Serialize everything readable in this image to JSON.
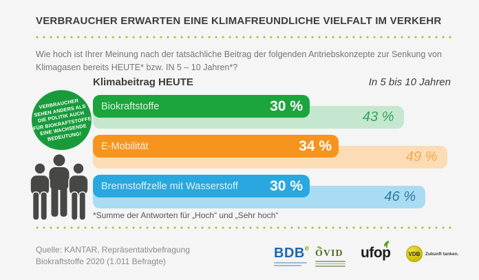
{
  "meta": {
    "background": "#f4f5f4",
    "accent_dot_green": "#a8c83e",
    "silhouette_gray": "#474746"
  },
  "header": {
    "title": "VERBRAUCHER ERWARTEN EINE KLIMAFREUNDLICHE VIELFALT IM VERKEHR",
    "question": "Wie hoch ist Ihrer Meinung nach der tatsächliche Beitrag der folgenden Antriebskonzepte zur Senkung von Klimagasen bereits HEUTE* bzw. IN 5 – 10 Jahren*?"
  },
  "badge": {
    "color": "#199b3c",
    "lines": [
      "VERBRAUCHER",
      "SEHEN ANDERS ALS",
      "DIE POLITIK AUCH",
      "FÜR BIOKRAFTSTOFFE",
      "EINE WACHSENDE",
      "BEDEUTUNG!"
    ]
  },
  "chart": {
    "col_today": "Klimabeitrag HEUTE",
    "col_future": "In 5 bis 10 Jahren",
    "rows": [
      {
        "label": "Biokraftstoffe",
        "today_value": 30,
        "today_label": "30 %",
        "future_value": 43,
        "future_label": "43 %",
        "color": "#1ba53c",
        "light_color": "#c5e7cf",
        "future_text_color": "#33a35c"
      },
      {
        "label": "E-Mobilität",
        "today_value": 34,
        "today_label": "34 %",
        "future_value": 49,
        "future_label": "49 %",
        "color": "#f7941d",
        "light_color": "#fbdcb4",
        "future_text_color": "#f5a94a"
      },
      {
        "label": "Brennstoffzelle mit Wasserstoff",
        "today_value": 30,
        "today_label": "30 %",
        "future_value": 46,
        "future_label": "46 %",
        "color": "#29a8df",
        "light_color": "#a9dcf2",
        "future_text_color": "#2c7ca3"
      }
    ],
    "footnote": "*Summe der Antworten für „Hoch“ und „Sehr hoch“"
  },
  "footer": {
    "source_line1": "Quelle: KANTAR, Repräsentativbefragung",
    "source_line2": "Biokraftstoffe 2020 (1.011 Befragte)",
    "logos": {
      "bdb": {
        "text": "BDB",
        "sup": "e"
      },
      "ovid": {
        "text": "OVID"
      },
      "ufop": {
        "text": "ufop"
      },
      "vdb": {
        "text": "VDB",
        "tagline": "Zukunft tanken."
      }
    }
  },
  "chart_data": {
    "type": "bar",
    "orientation": "horizontal",
    "title": "VERBRAUCHER ERWARTEN EINE KLIMAFREUNDLICHE VIELFALT IM VERKEHR",
    "subtitle": "Wie hoch ist Ihrer Meinung nach der tatsächliche Beitrag der folgenden Antriebskonzepte zur Senkung von Klimagasen bereits HEUTE* bzw. IN 5 – 10 Jahren*?",
    "categories": [
      "Biokraftstoffe",
      "E-Mobilität",
      "Brennstoffzelle mit Wasserstoff"
    ],
    "series": [
      {
        "name": "Klimabeitrag HEUTE",
        "values": [
          30,
          34,
          30
        ],
        "colors": [
          "#1ba53c",
          "#f7941d",
          "#29a8df"
        ]
      },
      {
        "name": "In 5 bis 10 Jahren",
        "values": [
          43,
          49,
          46
        ],
        "colors": [
          "#c5e7cf",
          "#fbdcb4",
          "#a9dcf2"
        ]
      }
    ],
    "unit": "%",
    "value_labels": true,
    "legend_position": "column-headers",
    "grid": false,
    "annotation": "VERBRAUCHER SEHEN ANDERS ALS DIE POLITIK AUCH FÜR BIOKRAFTSTOFFE EINE WACHSENDE BEDEUTUNG!",
    "footnote": "*Summe der Antworten für „Hoch“ und „Sehr hoch“",
    "source": "Quelle: KANTAR, Repräsentativbefragung Biokraftstoffe 2020 (1.011 Befragte)"
  }
}
